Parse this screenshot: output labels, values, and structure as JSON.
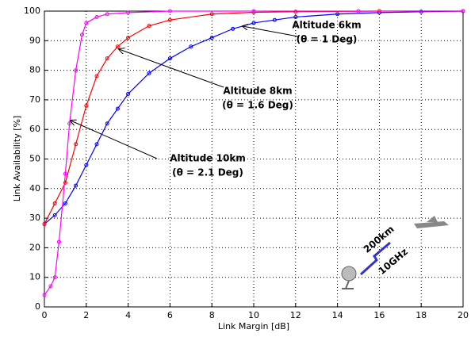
{
  "chart_data": {
    "type": "line",
    "x_label": "Link Margin [dB]",
    "y_label": "Link Availability [%]",
    "xlim": [
      0,
      20
    ],
    "xticks": [
      0,
      2,
      4,
      6,
      8,
      10,
      12,
      14,
      16,
      18,
      20
    ],
    "ylim": [
      0,
      100
    ],
    "yticks": [
      0,
      10,
      20,
      30,
      40,
      50,
      60,
      70,
      80,
      90,
      100
    ],
    "grid": true,
    "series": [
      {
        "color": "#0000ff",
        "x": [
          0,
          0.5,
          1,
          1.5,
          2,
          2.5,
          3,
          3.5,
          4,
          5,
          6,
          7,
          8,
          9,
          10,
          11,
          12,
          14,
          16,
          18,
          20
        ],
        "values": [
          28,
          31,
          35,
          41,
          48,
          55,
          62,
          67,
          72,
          79,
          84,
          88,
          91,
          94,
          96,
          97,
          98,
          99,
          99.5,
          99.8,
          100
        ]
      },
      {
        "color": "#ff0000",
        "x": [
          0,
          0.5,
          1,
          1.5,
          2,
          2.5,
          3,
          3.5,
          4,
          5,
          6,
          8,
          10,
          12,
          16,
          20
        ],
        "values": [
          28,
          35,
          42,
          55,
          68,
          78,
          84,
          88,
          91,
          95,
          97,
          99,
          99.6,
          99.8,
          100,
          100
        ]
      },
      {
        "color": "#ff00ff",
        "x": [
          0,
          0.3,
          0.5,
          0.7,
          1,
          1.2,
          1.5,
          1.8,
          2,
          2.5,
          3,
          4,
          6,
          10,
          15,
          20
        ],
        "values": [
          4,
          7,
          10,
          22,
          45,
          62,
          80,
          92,
          96,
          98,
          99,
          99.5,
          100,
          100,
          100,
          100
        ]
      }
    ],
    "annotations": [
      {
        "lines": [
          "Altitude 6km",
          "(θ = 1 Deg)"
        ],
        "color": "#0000ff"
      },
      {
        "lines": [
          "Altitude 8km",
          "(θ = 1.6 Deg)"
        ],
        "color": "#ff0000"
      },
      {
        "lines": [
          "Altitude 10km",
          "(θ = 2.1 Deg)"
        ],
        "color": "#ff00ff"
      }
    ],
    "inset_labels": [
      "200km",
      "10GHz"
    ]
  }
}
